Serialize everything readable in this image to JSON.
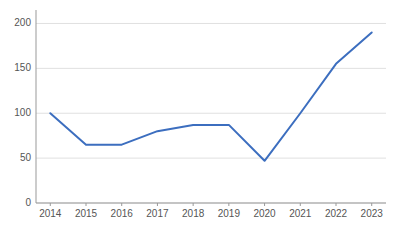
{
  "chart_data": {
    "type": "line",
    "x": [
      2014,
      2015,
      2016,
      2017,
      2018,
      2019,
      2020,
      2021,
      2022,
      2023
    ],
    "values": [
      100,
      65,
      65,
      80,
      87,
      87,
      47,
      100,
      155,
      190
    ],
    "color": "#3c6ebf",
    "xlim": [
      2013.6,
      2023.4
    ],
    "xticks": [
      2014,
      2015,
      2016,
      2017,
      2018,
      2019,
      2020,
      2021,
      2022,
      2023
    ],
    "ylim": [
      0,
      215
    ],
    "yticks": [
      0,
      50,
      100,
      150,
      200
    ],
    "grid": true
  }
}
